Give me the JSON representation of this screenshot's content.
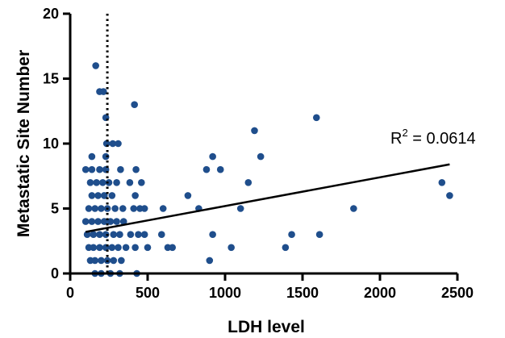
{
  "chart_data": {
    "type": "scatter",
    "title": "",
    "xlabel": "LDH level",
    "ylabel": "Metastatic Site Number",
    "xlim": [
      0,
      2500
    ],
    "ylim": [
      0,
      20
    ],
    "xticks": [
      0,
      500,
      1000,
      1500,
      2000,
      2500
    ],
    "yticks": [
      0,
      5,
      10,
      15,
      20
    ],
    "grid": false,
    "legend": "none",
    "point_color": "#1f4e8c",
    "reference_line": {
      "orientation": "vertical",
      "x": 240,
      "style": "dotted"
    },
    "regression_line": {
      "x": [
        100,
        2450
      ],
      "y": [
        3.2,
        8.4
      ]
    },
    "annotation": {
      "base": "R",
      "superscript": "2",
      "rest": " = 0.0614"
    },
    "points": [
      [
        165,
        16
      ],
      [
        190,
        14
      ],
      [
        215,
        14
      ],
      [
        230,
        12
      ],
      [
        235,
        10
      ],
      [
        275,
        10
      ],
      [
        310,
        10
      ],
      [
        415,
        13
      ],
      [
        325,
        8
      ],
      [
        385,
        7
      ],
      [
        425,
        8
      ],
      [
        460,
        7
      ],
      [
        130,
        1
      ],
      [
        160,
        1
      ],
      [
        200,
        1
      ],
      [
        240,
        1
      ],
      [
        280,
        1
      ],
      [
        330,
        1
      ],
      [
        120,
        2
      ],
      [
        150,
        2
      ],
      [
        190,
        2
      ],
      [
        230,
        2
      ],
      [
        270,
        2
      ],
      [
        310,
        2
      ],
      [
        360,
        2
      ],
      [
        420,
        2
      ],
      [
        110,
        3
      ],
      [
        150,
        3
      ],
      [
        190,
        3
      ],
      [
        230,
        3
      ],
      [
        280,
        3
      ],
      [
        320,
        3
      ],
      [
        390,
        3
      ],
      [
        440,
        3
      ],
      [
        100,
        4
      ],
      [
        140,
        4
      ],
      [
        180,
        4
      ],
      [
        220,
        4
      ],
      [
        260,
        4
      ],
      [
        300,
        4
      ],
      [
        345,
        4
      ],
      [
        120,
        5
      ],
      [
        160,
        5
      ],
      [
        200,
        5
      ],
      [
        240,
        5
      ],
      [
        290,
        5
      ],
      [
        340,
        5
      ],
      [
        410,
        5
      ],
      [
        450,
        5
      ],
      [
        140,
        6
      ],
      [
        180,
        6
      ],
      [
        220,
        6
      ],
      [
        270,
        6
      ],
      [
        130,
        7
      ],
      [
        170,
        7
      ],
      [
        210,
        7
      ],
      [
        250,
        7
      ],
      [
        300,
        7
      ],
      [
        100,
        8
      ],
      [
        140,
        8
      ],
      [
        190,
        8
      ],
      [
        230,
        8
      ],
      [
        140,
        9
      ],
      [
        230,
        9
      ],
      [
        160,
        0
      ],
      [
        200,
        0
      ],
      [
        260,
        0
      ],
      [
        320,
        0
      ],
      [
        430,
        0
      ],
      [
        500,
        2
      ],
      [
        480,
        3
      ],
      [
        480,
        5
      ],
      [
        420,
        6
      ],
      [
        590,
        3
      ],
      [
        600,
        5
      ],
      [
        630,
        2
      ],
      [
        660,
        2
      ],
      [
        760,
        6
      ],
      [
        830,
        5
      ],
      [
        880,
        8
      ],
      [
        900,
        1
      ],
      [
        920,
        9
      ],
      [
        970,
        8
      ],
      [
        920,
        3
      ],
      [
        1040,
        2
      ],
      [
        1100,
        5
      ],
      [
        1150,
        7
      ],
      [
        1190,
        11
      ],
      [
        1230,
        9
      ],
      [
        1390,
        2
      ],
      [
        1430,
        3
      ],
      [
        1590,
        12
      ],
      [
        1610,
        3
      ],
      [
        1830,
        5
      ],
      [
        2400,
        7
      ],
      [
        2450,
        6
      ]
    ]
  }
}
